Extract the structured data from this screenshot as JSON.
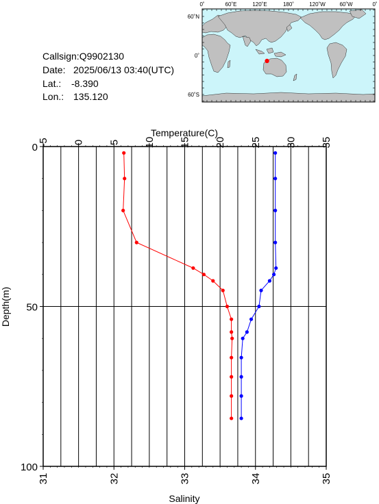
{
  "info": {
    "callsign_label": "Callsign:",
    "callsign": "Q9902130",
    "date_label": "Date:",
    "date": "2025/06/13 03:40(UTC)",
    "lat_label": "Lat.:",
    "lat": "-8.390",
    "lon_label": "Lon.:",
    "lon": "135.120"
  },
  "map": {
    "lon_labels": [
      "0˚",
      "60˚E",
      "120˚E",
      "180˚",
      "120˚W",
      "60˚W",
      "0˚"
    ],
    "lon_values": [
      0,
      60,
      120,
      180,
      240,
      300,
      360
    ],
    "lat_labels": [
      "60˚N",
      "0˚",
      "60˚S"
    ],
    "lat_values": [
      60,
      0,
      -60
    ],
    "station": {
      "lat": -8.39,
      "lon": 135.12
    },
    "colors": {
      "ocean": "#ccf5fa",
      "land": "#c0c0c0",
      "marker": "#ff0000"
    }
  },
  "chart_data": {
    "type": "line",
    "top_axis_title": "Temperature(C)",
    "bottom_axis_title": "Salinity",
    "ylabel": "Depth(m)",
    "temperature_ticks": [
      "-5",
      "0",
      "5",
      "10",
      "15",
      "20",
      "25",
      "30",
      "35"
    ],
    "salinity_ticks": [
      "31",
      "32",
      "33",
      "34",
      "35"
    ],
    "depth_ticks": [
      "0",
      "50",
      "100"
    ],
    "temperature_range": [
      -5,
      35
    ],
    "salinity_range": [
      31,
      35
    ],
    "depth_range": [
      0,
      100
    ],
    "grid": true,
    "series": [
      {
        "axis": "temperature",
        "color": "#ff0000",
        "points": [
          {
            "depth": 2,
            "value": 6.4
          },
          {
            "depth": 10,
            "value": 6.5
          },
          {
            "depth": 20,
            "value": 6.3
          },
          {
            "depth": 30,
            "value": 8.2
          },
          {
            "depth": 38,
            "value": 16.2
          },
          {
            "depth": 40,
            "value": 17.7
          },
          {
            "depth": 42,
            "value": 19.0
          },
          {
            "depth": 45,
            "value": 20.4
          },
          {
            "depth": 50,
            "value": 21.0
          },
          {
            "depth": 54,
            "value": 21.6
          },
          {
            "depth": 58,
            "value": 21.6
          },
          {
            "depth": 60,
            "value": 21.7
          },
          {
            "depth": 66,
            "value": 21.6
          },
          {
            "depth": 72,
            "value": 21.6
          },
          {
            "depth": 78,
            "value": 21.6
          },
          {
            "depth": 85,
            "value": 21.6
          }
        ]
      },
      {
        "axis": "salinity",
        "color": "#0000ff",
        "points": [
          {
            "depth": 2,
            "value": 34.28
          },
          {
            "depth": 10,
            "value": 34.28
          },
          {
            "depth": 20,
            "value": 34.28
          },
          {
            "depth": 30,
            "value": 34.28
          },
          {
            "depth": 38,
            "value": 34.29
          },
          {
            "depth": 40,
            "value": 34.26
          },
          {
            "depth": 42,
            "value": 34.2
          },
          {
            "depth": 45,
            "value": 34.08
          },
          {
            "depth": 50,
            "value": 34.05
          },
          {
            "depth": 54,
            "value": 33.94
          },
          {
            "depth": 58,
            "value": 33.88
          },
          {
            "depth": 60,
            "value": 33.82
          },
          {
            "depth": 66,
            "value": 33.8
          },
          {
            "depth": 72,
            "value": 33.8
          },
          {
            "depth": 78,
            "value": 33.8
          },
          {
            "depth": 85,
            "value": 33.8
          }
        ]
      }
    ]
  }
}
